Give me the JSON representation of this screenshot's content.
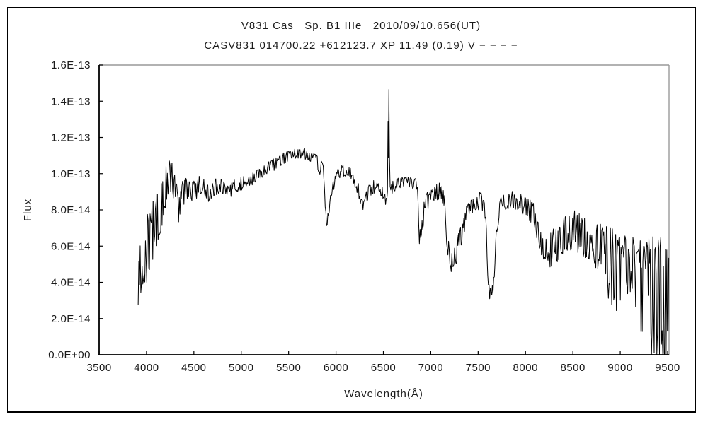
{
  "window": {
    "background": "#ffffff",
    "border_color": "#000000"
  },
  "header": {
    "title": "V831 Cas   Sp. B1 IIIe   2010/09/10.656(UT)",
    "subtitle": "CASV831 014700.22 +612123.7 XP 11.49 (0.19) V − − − −"
  },
  "chart_data": {
    "type": "line",
    "title": "V831 Cas   Sp. B1 IIIe   2010/09/10.656(UT)",
    "subtitle": "CASV831 014700.22 +612123.7 XP 11.49 (0.19) V − − − −",
    "xlabel": "Wavelength(Å)",
    "ylabel": "Flux",
    "xlim": [
      3500,
      9515
    ],
    "ylim": [
      0,
      1.6e-13
    ],
    "ylim_e14": [
      0,
      16
    ],
    "x_ticks": [
      3500,
      4000,
      4500,
      5000,
      5500,
      6000,
      6500,
      7000,
      7500,
      8000,
      8500,
      9000,
      9500
    ],
    "y_tick_labels": [
      "0.0E+00",
      "2.0E-14",
      "4.0E-14",
      "6.0E-14",
      "8.0E-14",
      "1.0E-13",
      "1.2E-13",
      "1.4E-13",
      "1.6E-13"
    ],
    "y_tick_values_e14": [
      0,
      2,
      4,
      6,
      8,
      10,
      12,
      14,
      16
    ],
    "grid": false,
    "legend": "none",
    "line_color": "#000000",
    "frame_secondary_color": "#999999",
    "spectrum": {
      "units_note": "flux values stored as 1e-14 of the y-axis scale",
      "wavelength_start": 3912,
      "wavelength_end": 9515,
      "sample_step_angstrom": 7,
      "noise_seed": 97531,
      "noise_exponent": 0.65,
      "red_end_bias": {
        "start_angstrom": 8850,
        "down_factor": 1.7,
        "up_factor": 0.9
      },
      "continuum_anchors": [
        [
          3912,
          4.0
        ],
        [
          3940,
          4.8
        ],
        [
          3970,
          5.4
        ],
        [
          4010,
          6.1
        ],
        [
          4060,
          6.7
        ],
        [
          4110,
          7.4
        ],
        [
          4160,
          8.2
        ],
        [
          4210,
          9.5
        ],
        [
          4245,
          9.9
        ],
        [
          4280,
          9.6
        ],
        [
          4310,
          9.0
        ],
        [
          4335,
          7.9
        ],
        [
          4365,
          8.8
        ],
        [
          4420,
          9.1
        ],
        [
          4480,
          8.9
        ],
        [
          4540,
          9.2
        ],
        [
          4590,
          9.5
        ],
        [
          4630,
          9.1
        ],
        [
          4660,
          8.9
        ],
        [
          4700,
          9.2
        ],
        [
          4760,
          9.35
        ],
        [
          4820,
          9.25
        ],
        [
          4861,
          9.0
        ],
        [
          4910,
          9.25
        ],
        [
          4960,
          9.35
        ],
        [
          5000,
          9.45
        ],
        [
          5100,
          9.7
        ],
        [
          5200,
          10.0
        ],
        [
          5300,
          10.35
        ],
        [
          5400,
          10.7
        ],
        [
          5500,
          11.0
        ],
        [
          5580,
          11.15
        ],
        [
          5660,
          11.1
        ],
        [
          5740,
          10.95
        ],
        [
          5800,
          10.8
        ],
        [
          5822,
          10.1
        ],
        [
          5848,
          10.6
        ],
        [
          5878,
          9.6
        ],
        [
          5900,
          6.8
        ],
        [
          5925,
          8.2
        ],
        [
          5960,
          9.3
        ],
        [
          6020,
          9.9
        ],
        [
          6080,
          10.2
        ],
        [
          6150,
          10.0
        ],
        [
          6210,
          9.4
        ],
        [
          6250,
          8.9
        ],
        [
          6285,
          8.1
        ],
        [
          6320,
          8.6
        ],
        [
          6360,
          9.1
        ],
        [
          6420,
          9.35
        ],
        [
          6470,
          9.1
        ],
        [
          6520,
          8.6
        ],
        [
          6540,
          8.9
        ],
        [
          6585,
          9.2
        ],
        [
          6650,
          9.45
        ],
        [
          6720,
          9.55
        ],
        [
          6800,
          9.5
        ],
        [
          6855,
          9.4
        ],
        [
          6880,
          6.5
        ],
        [
          6910,
          7.2
        ],
        [
          6940,
          8.3
        ],
        [
          6980,
          8.6
        ],
        [
          7030,
          8.9
        ],
        [
          7090,
          9.1
        ],
        [
          7140,
          8.6
        ],
        [
          7180,
          6.0
        ],
        [
          7220,
          5.2
        ],
        [
          7260,
          5.6
        ],
        [
          7300,
          6.1
        ],
        [
          7350,
          7.3
        ],
        [
          7410,
          8.1
        ],
        [
          7470,
          8.5
        ],
        [
          7530,
          8.5
        ],
        [
          7580,
          7.8
        ],
        [
          7605,
          3.6
        ],
        [
          7640,
          3.0
        ],
        [
          7670,
          4.4
        ],
        [
          7700,
          7.2
        ],
        [
          7730,
          8.2
        ],
        [
          7780,
          8.5
        ],
        [
          7840,
          8.6
        ],
        [
          7900,
          8.5
        ],
        [
          7960,
          8.3
        ],
        [
          8020,
          8.1
        ],
        [
          8080,
          7.8
        ],
        [
          8140,
          6.6
        ],
        [
          8200,
          5.8
        ],
        [
          8260,
          5.7
        ],
        [
          8320,
          6.1
        ],
        [
          8380,
          6.5
        ],
        [
          8440,
          6.8
        ],
        [
          8500,
          6.9
        ],
        [
          8560,
          6.7
        ],
        [
          8620,
          6.5
        ],
        [
          8700,
          6.2
        ],
        [
          8780,
          6.0
        ],
        [
          8860,
          5.8
        ],
        [
          8940,
          5.3
        ],
        [
          9020,
          5.0
        ],
        [
          9100,
          5.1
        ],
        [
          9160,
          5.0
        ],
        [
          9220,
          4.6
        ],
        [
          9280,
          4.3
        ],
        [
          9340,
          4.1
        ],
        [
          9400,
          3.8
        ],
        [
          9460,
          3.6
        ],
        [
          9515,
          2.6
        ]
      ],
      "noise_amplitude_anchors": [
        [
          3912,
          1.4
        ],
        [
          3950,
          1.8
        ],
        [
          4000,
          2.0
        ],
        [
          4060,
          1.8
        ],
        [
          4120,
          1.5
        ],
        [
          4180,
          1.2
        ],
        [
          4240,
          1.0
        ],
        [
          4300,
          0.85
        ],
        [
          4400,
          0.7
        ],
        [
          4500,
          0.6
        ],
        [
          4650,
          0.5
        ],
        [
          4800,
          0.45
        ],
        [
          5000,
          0.4
        ],
        [
          5300,
          0.35
        ],
        [
          5600,
          0.3
        ],
        [
          5800,
          0.3
        ],
        [
          5900,
          0.45
        ],
        [
          6000,
          0.35
        ],
        [
          6200,
          0.35
        ],
        [
          6300,
          0.45
        ],
        [
          6450,
          0.35
        ],
        [
          6550,
          0.35
        ],
        [
          6700,
          0.3
        ],
        [
          6850,
          0.35
        ],
        [
          6920,
          0.55
        ],
        [
          7050,
          0.45
        ],
        [
          7200,
          0.8
        ],
        [
          7300,
          0.8
        ],
        [
          7450,
          0.5
        ],
        [
          7600,
          0.5
        ],
        [
          7700,
          0.5
        ],
        [
          7850,
          0.5
        ],
        [
          8000,
          0.55
        ],
        [
          8100,
          0.7
        ],
        [
          8200,
          0.9
        ],
        [
          8350,
          1.1
        ],
        [
          8500,
          1.1
        ],
        [
          8650,
          1.2
        ],
        [
          8800,
          1.4
        ],
        [
          8950,
          1.9
        ],
        [
          9050,
          1.7
        ],
        [
          9150,
          1.6
        ],
        [
          9250,
          2.2
        ],
        [
          9350,
          2.8
        ],
        [
          9430,
          3.2
        ],
        [
          9515,
          3.0
        ]
      ],
      "emission_spike": {
        "peak_wavelength": 6563,
        "peak_flux_e14": 14.65,
        "skip_range": [
          6539,
          6581
        ],
        "points": [
          [
            6543,
            9.0
          ],
          [
            6549,
            12.9
          ],
          [
            6553,
            10.9
          ],
          [
            6558,
            14.65
          ],
          [
            6564,
            11.0
          ],
          [
            6571,
            9.3
          ],
          [
            6578,
            9.1
          ]
        ]
      }
    }
  }
}
